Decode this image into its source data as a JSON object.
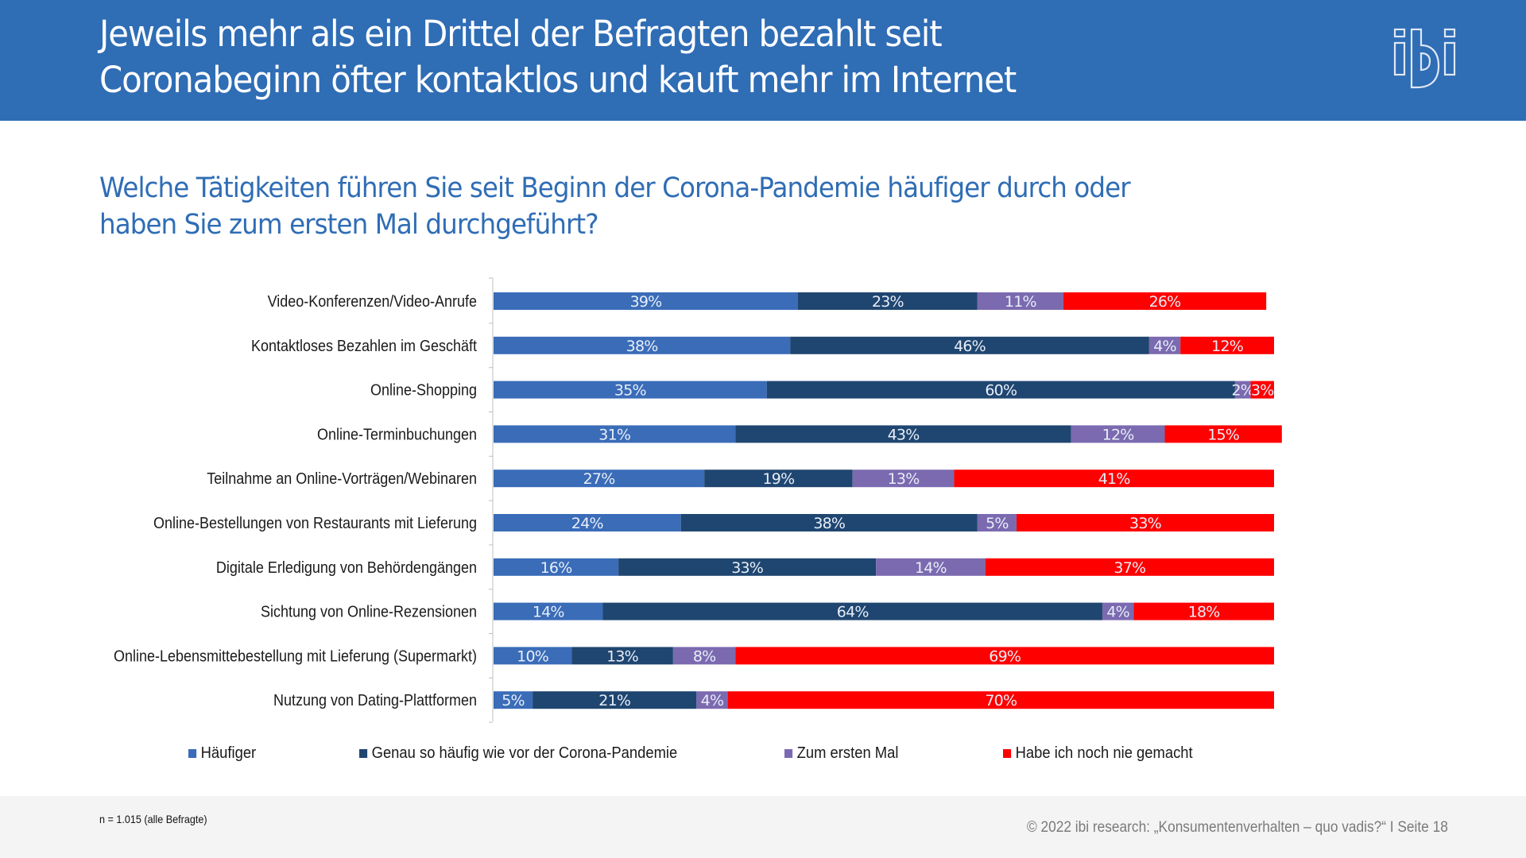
{
  "header": {
    "title_line1": "Jeweils mehr als ein Drittel der Befragten bezahlt seit",
    "title_line2": "Coronabeginn öfter kontaktlos und kauft mehr im Internet",
    "logo": "ibi-logo-icon",
    "background_color": "#2f6db5"
  },
  "subtitle": {
    "line1": "Welche Tätigkeiten führen Sie seit Beginn der Corona-Pandemie häufiger durch oder",
    "line2": "haben Sie zum ersten Mal durchgeführt?"
  },
  "chart_data": {
    "type": "bar",
    "orientation": "horizontal",
    "stacked": true,
    "percent_stacked": true,
    "title": "Welche Tätigkeiten führen Sie seit Beginn der Corona-Pandemie häufiger durch oder haben Sie zum ersten Mal durchgeführt?",
    "xlabel": "",
    "ylabel": "",
    "xlim": [
      0,
      100
    ],
    "grid": false,
    "legend_position": "bottom",
    "value_format": "{v}%",
    "categories": [
      "Video-Konferenzen/Video-Anrufe",
      "Kontaktloses Bezahlen im Geschäft",
      "Online-Shopping",
      "Online-Terminbuchungen",
      "Teilnahme an Online-Vorträgen/Webinaren",
      "Online-Bestellungen von Restaurants mit Lieferung",
      "Digitale Erledigung von Behördengängen",
      "Sichtung von Online-Rezensionen",
      "Online-Lebensmittebestellung mit Lieferung (Supermarkt)",
      "Nutzung von Dating-Plattformen"
    ],
    "series": [
      {
        "name": "Häufiger",
        "color": "#3a6cb8",
        "values": [
          39,
          38,
          35,
          31,
          27,
          24,
          16,
          14,
          10,
          5
        ]
      },
      {
        "name": "Genau so häufig wie vor der Corona-Pandemie",
        "color": "#1f4670",
        "values": [
          23,
          46,
          60,
          43,
          19,
          38,
          33,
          64,
          13,
          21
        ]
      },
      {
        "name": "Zum ersten Mal",
        "color": "#7b6ab0",
        "values": [
          11,
          4,
          2,
          12,
          13,
          5,
          14,
          4,
          8,
          4
        ]
      },
      {
        "name": "Habe ich noch nie gemacht",
        "color": "#ff0000",
        "values": [
          26,
          12,
          3,
          15,
          41,
          33,
          37,
          18,
          69,
          70
        ]
      }
    ]
  },
  "footer": {
    "note": "n = 1.015 (alle Befragte)",
    "copyright": "© 2022 ibi research: „Konsumentenverhalten – quo vadis?“   I Seite 18"
  }
}
